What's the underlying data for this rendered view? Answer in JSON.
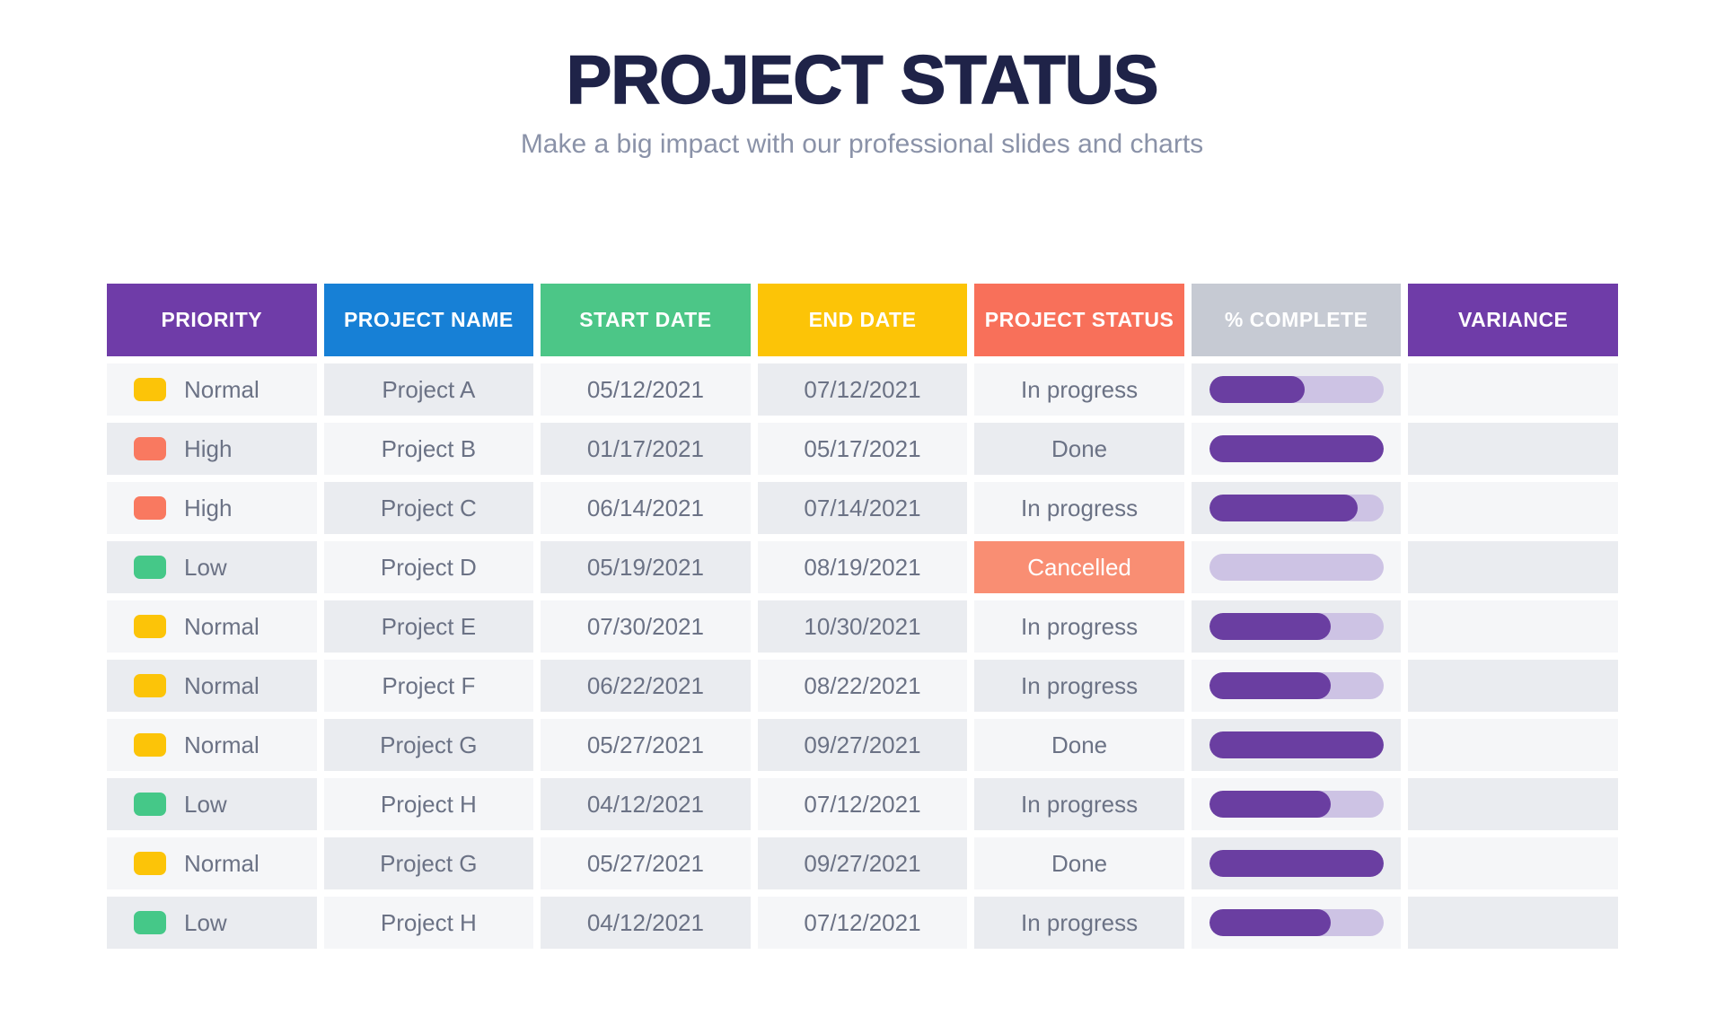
{
  "title": "PROJECT STATUS",
  "subtitle": "Make a big impact with our professional slides and charts",
  "colors": {
    "title_text": "#1f2348",
    "subtitle_text": "#8a92a8",
    "body_text": "#6b7285",
    "cell_light": "#f5f6f8",
    "cell_dark": "#eaecf0",
    "cancelled_bg": "#f98e73",
    "progress_fill": "#6a3ea1",
    "progress_track": "#cdc3e4",
    "priority_normal": "#fcc408",
    "priority_high": "#f97960",
    "priority_low": "#45c888"
  },
  "table": {
    "columns": [
      {
        "id": "priority",
        "label": "PRIORITY",
        "bg": "#6f3ca8"
      },
      {
        "id": "project-name",
        "label": "PROJECT NAME",
        "bg": "#1780d6"
      },
      {
        "id": "start-date",
        "label": "START DATE",
        "bg": "#4cc687"
      },
      {
        "id": "end-date",
        "label": "END DATE",
        "bg": "#fcc407"
      },
      {
        "id": "project-status",
        "label": "PROJECT STATUS",
        "bg": "#f8705a"
      },
      {
        "id": "percent-complete",
        "label": "% COMPLETE",
        "bg": "#c6cad3"
      },
      {
        "id": "variance",
        "label": "VARIANCE",
        "bg": "#6f3ca8"
      }
    ],
    "rows": [
      {
        "priority_label": "Normal",
        "priority_color": "#fcc408",
        "project_name": "Project A",
        "start_date": "05/12/2021",
        "end_date": "07/12/2021",
        "status": "In progress",
        "status_style": "plain",
        "percent_complete": 55,
        "variance": ""
      },
      {
        "priority_label": "High",
        "priority_color": "#f97960",
        "project_name": "Project B",
        "start_date": "01/17/2021",
        "end_date": "05/17/2021",
        "status": "Done",
        "status_style": "plain",
        "percent_complete": 100,
        "variance": ""
      },
      {
        "priority_label": "High",
        "priority_color": "#f97960",
        "project_name": "Project C",
        "start_date": "06/14/2021",
        "end_date": "07/14/2021",
        "status": "In progress",
        "status_style": "plain",
        "percent_complete": 85,
        "variance": ""
      },
      {
        "priority_label": "Low",
        "priority_color": "#45c888",
        "project_name": "Project D",
        "start_date": "05/19/2021",
        "end_date": "08/19/2021",
        "status": "Cancelled",
        "status_style": "cancelled",
        "percent_complete": 0,
        "variance": ""
      },
      {
        "priority_label": "Normal",
        "priority_color": "#fcc408",
        "project_name": "Project E",
        "start_date": "07/30/2021",
        "end_date": "10/30/2021",
        "status": "In progress",
        "status_style": "plain",
        "percent_complete": 70,
        "variance": ""
      },
      {
        "priority_label": "Normal",
        "priority_color": "#fcc408",
        "project_name": "Project F",
        "start_date": "06/22/2021",
        "end_date": "08/22/2021",
        "status": "In progress",
        "status_style": "plain",
        "percent_complete": 70,
        "variance": ""
      },
      {
        "priority_label": "Normal",
        "priority_color": "#fcc408",
        "project_name": "Project G",
        "start_date": "05/27/2021",
        "end_date": "09/27/2021",
        "status": "Done",
        "status_style": "plain",
        "percent_complete": 100,
        "variance": ""
      },
      {
        "priority_label": "Low",
        "priority_color": "#45c888",
        "project_name": "Project H",
        "start_date": "04/12/2021",
        "end_date": "07/12/2021",
        "status": "In progress",
        "status_style": "plain",
        "percent_complete": 70,
        "variance": ""
      },
      {
        "priority_label": "Normal",
        "priority_color": "#fcc408",
        "project_name": "Project G",
        "start_date": "05/27/2021",
        "end_date": "09/27/2021",
        "status": "Done",
        "status_style": "plain",
        "percent_complete": 100,
        "variance": ""
      },
      {
        "priority_label": "Low",
        "priority_color": "#45c888",
        "project_name": "Project H",
        "start_date": "04/12/2021",
        "end_date": "07/12/2021",
        "status": "In progress",
        "status_style": "plain",
        "percent_complete": 70,
        "variance": ""
      }
    ]
  },
  "chart_data": {
    "type": "table",
    "title": "PROJECT STATUS",
    "subtitle": "Make a big impact with our professional slides and charts",
    "columns": [
      "PRIORITY",
      "PROJECT NAME",
      "START DATE",
      "END DATE",
      "PROJECT STATUS",
      "% COMPLETE",
      "VARIANCE"
    ],
    "rows": [
      [
        "Normal",
        "Project A",
        "05/12/2021",
        "07/12/2021",
        "In progress",
        55,
        ""
      ],
      [
        "High",
        "Project B",
        "01/17/2021",
        "05/17/2021",
        "Done",
        100,
        ""
      ],
      [
        "High",
        "Project C",
        "06/14/2021",
        "07/14/2021",
        "In progress",
        85,
        ""
      ],
      [
        "Low",
        "Project D",
        "05/19/2021",
        "08/19/2021",
        "Cancelled",
        0,
        ""
      ],
      [
        "Normal",
        "Project E",
        "07/30/2021",
        "10/30/2021",
        "In progress",
        70,
        ""
      ],
      [
        "Normal",
        "Project F",
        "06/22/2021",
        "08/22/2021",
        "In progress",
        70,
        ""
      ],
      [
        "Normal",
        "Project G",
        "05/27/2021",
        "09/27/2021",
        "Done",
        100,
        ""
      ],
      [
        "Low",
        "Project H",
        "04/12/2021",
        "07/12/2021",
        "In progress",
        70,
        ""
      ],
      [
        "Normal",
        "Project G",
        "05/27/2021",
        "09/27/2021",
        "Done",
        100,
        ""
      ],
      [
        "Low",
        "Project H",
        "04/12/2021",
        "07/12/2021",
        "In progress",
        70,
        ""
      ]
    ],
    "legend_position": "none",
    "grid": false
  }
}
